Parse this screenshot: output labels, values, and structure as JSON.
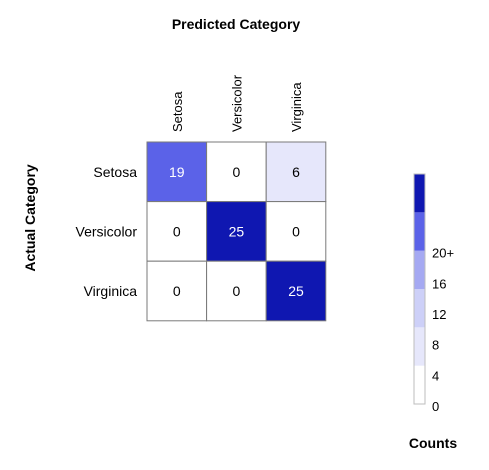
{
  "chart_data": {
    "type": "heatmap",
    "title": "Predicted Category",
    "xlabel": "Predicted Category",
    "ylabel": "Actual Category",
    "x_categories": [
      "Setosa",
      "Versicolor",
      "Virginica"
    ],
    "y_categories": [
      "Setosa",
      "Versicolor",
      "Virginica"
    ],
    "matrix": [
      [
        19,
        0,
        6
      ],
      [
        0,
        25,
        0
      ],
      [
        0,
        0,
        25
      ]
    ],
    "legend": {
      "title": "Counts",
      "ticks": [
        "0",
        "4",
        "8",
        "12",
        "16",
        "20+"
      ],
      "bins": [
        {
          "min": 0,
          "max": 4,
          "color": "#ffffff"
        },
        {
          "min": 4,
          "max": 8,
          "color": "#e6e7fb"
        },
        {
          "min": 8,
          "max": 12,
          "color": "#cdd0f8"
        },
        {
          "min": 12,
          "max": 16,
          "color": "#a5a9f2"
        },
        {
          "min": 16,
          "max": 20,
          "color": "#5b62e8"
        },
        {
          "min": 20,
          "max": 25,
          "color": "#0f17b1"
        }
      ]
    }
  }
}
